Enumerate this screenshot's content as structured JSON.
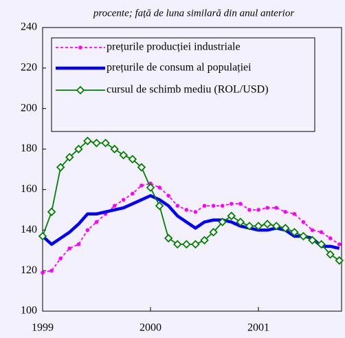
{
  "chart_data": {
    "type": "line",
    "subtitle": "procente; față de luna similară din anul anterior",
    "categories": [
      "1999",
      null,
      null,
      null,
      null,
      null,
      null,
      null,
      null,
      null,
      null,
      null,
      "2000",
      null,
      null,
      null,
      null,
      null,
      null,
      null,
      null,
      null,
      null,
      null,
      "2001",
      null,
      null,
      null,
      null,
      null,
      null,
      null,
      null,
      null
    ],
    "series": [
      {
        "name": "prețurile producției industriale",
        "color": "#ff00ff",
        "marker": "circle",
        "dash": true,
        "values": [
          119,
          120,
          126,
          131,
          133,
          140,
          144,
          148,
          152,
          155,
          158,
          162,
          163,
          161,
          157,
          152,
          150,
          149,
          152,
          152,
          152,
          153,
          153,
          150,
          150,
          151,
          151,
          149,
          148,
          144,
          140,
          139,
          136,
          133
        ]
      },
      {
        "name": "prețurile de consum al populației",
        "color": "#0000ff",
        "marker": "none",
        "dash": false,
        "values": [
          137,
          133,
          136,
          139,
          143,
          148,
          148,
          149,
          150,
          151,
          153,
          155,
          157,
          155,
          152,
          147,
          144,
          141,
          144,
          145,
          145,
          144,
          142,
          141,
          140,
          140,
          141,
          140,
          137,
          137,
          136,
          132,
          132,
          131
        ]
      },
      {
        "name": "cursul de schimb mediu (ROL/USD)",
        "color": "#008000",
        "marker": "diamond",
        "dash": false,
        "values": [
          137,
          149,
          171,
          176,
          180,
          184,
          183,
          183,
          180,
          177,
          175,
          171,
          161,
          152,
          136,
          133,
          133,
          133,
          135,
          139,
          144,
          147,
          144,
          142,
          142,
          143,
          142,
          141,
          139,
          137,
          135,
          133,
          128,
          125
        ]
      }
    ],
    "ylim": [
      100,
      240
    ],
    "yticks": [
      100,
      120,
      140,
      160,
      180,
      200,
      220,
      240
    ],
    "grid": false,
    "legend": "upper left"
  }
}
